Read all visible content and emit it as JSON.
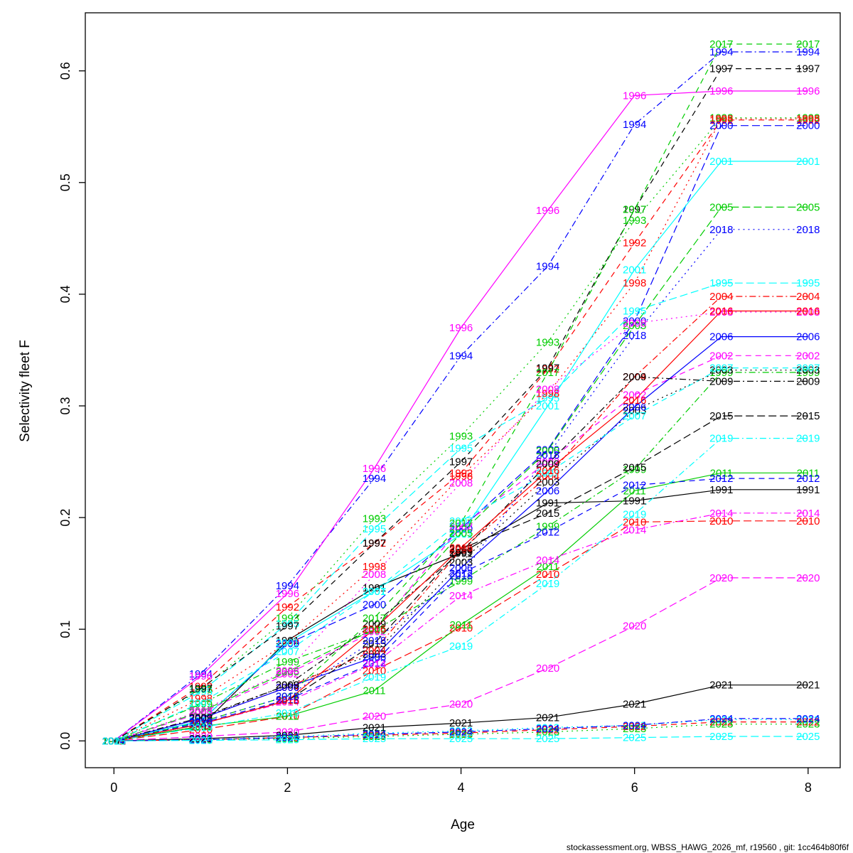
{
  "footer": "stockassessment.org, WBSS_HAWG_2026_mf, r19560 , git: 1cc464b80f6f",
  "chart_data": {
    "type": "line",
    "title": "",
    "xlabel": "Age",
    "ylabel": "Selectivity fleet F",
    "x": [
      0,
      1,
      2,
      3,
      4,
      5,
      6,
      7,
      8
    ],
    "xticks": [
      0,
      2,
      4,
      6,
      8
    ],
    "yticks": [
      "0.0",
      "0.1",
      "0.2",
      "0.3",
      "0.4",
      "0.5",
      "0.6"
    ],
    "xlim": [
      -0.33,
      8.37
    ],
    "ylim": [
      -0.024,
      0.652
    ],
    "grid": false,
    "legend_position": "none",
    "label_style": "year-at-each-point",
    "palette": {
      "black": "#000000",
      "red": "#ff0000",
      "green": "#00cd00",
      "blue": "#0000ff",
      "cyan": "#00ffff",
      "magenta": "#ff00ff"
    },
    "series": [
      {
        "name": "1991",
        "color": "#000000",
        "dash": "solid",
        "values": [
          0,
          0.013,
          0.09,
          0.137,
          0.168,
          0.213,
          0.215,
          0.225,
          0.225
        ]
      },
      {
        "name": "1992",
        "color": "#ff0000",
        "dash": "dashed",
        "values": [
          0,
          0.049,
          0.12,
          0.177,
          0.24,
          0.333,
          0.446,
          0.556,
          0.556
        ]
      },
      {
        "name": "1993",
        "color": "#00cd00",
        "dash": "dotted",
        "values": [
          0,
          0.046,
          0.11,
          0.199,
          0.273,
          0.357,
          0.466,
          0.558,
          0.558
        ]
      },
      {
        "name": "1994",
        "color": "#0000ff",
        "dash": "dashdot",
        "values": [
          0,
          0.06,
          0.139,
          0.235,
          0.345,
          0.425,
          0.552,
          0.617,
          0.617
        ]
      },
      {
        "name": "1995",
        "color": "#00ffff",
        "dash": "longdash",
        "values": [
          0,
          0.044,
          0.105,
          0.19,
          0.262,
          0.307,
          0.385,
          0.41,
          0.41
        ]
      },
      {
        "name": "1996",
        "color": "#ff00ff",
        "dash": "solid",
        "values": [
          0,
          0.058,
          0.132,
          0.244,
          0.37,
          0.475,
          0.578,
          0.582,
          0.582
        ]
      },
      {
        "name": "1997",
        "color": "#000000",
        "dash": "dashed",
        "values": [
          0,
          0.047,
          0.103,
          0.177,
          0.25,
          0.334,
          0.476,
          0.602,
          0.602
        ]
      },
      {
        "name": "1998",
        "color": "#ff0000",
        "dash": "dotted",
        "values": [
          0,
          0.038,
          0.088,
          0.156,
          0.237,
          0.311,
          0.41,
          0.557,
          0.557
        ]
      },
      {
        "name": "1999",
        "color": "#00cd00",
        "dash": "dashdot",
        "values": [
          0,
          0.033,
          0.071,
          0.099,
          0.143,
          0.192,
          0.243,
          0.33,
          0.33
        ]
      },
      {
        "name": "2000",
        "color": "#0000ff",
        "dash": "longdash",
        "values": [
          0,
          0.018,
          0.087,
          0.122,
          0.19,
          0.261,
          0.376,
          0.551,
          0.551
        ]
      },
      {
        "name": "2001",
        "color": "#00ffff",
        "dash": "solid",
        "values": [
          0,
          0.018,
          0.088,
          0.134,
          0.185,
          0.3,
          0.422,
          0.519,
          0.519
        ]
      },
      {
        "name": "2002",
        "color": "#ff00ff",
        "dash": "dashed",
        "values": [
          0,
          0.025,
          0.06,
          0.098,
          0.192,
          0.25,
          0.31,
          0.345,
          0.345
        ]
      },
      {
        "name": "2003",
        "color": "#000000",
        "dash": "dotted",
        "values": [
          0,
          0.02,
          0.05,
          0.078,
          0.16,
          0.232,
          0.296,
          0.332,
          0.332
        ]
      },
      {
        "name": "2004",
        "color": "#ff0000",
        "dash": "dashdot",
        "values": [
          0,
          0.02,
          0.048,
          0.081,
          0.171,
          0.237,
          0.326,
          0.398,
          0.398
        ]
      },
      {
        "name": "2005",
        "color": "#00cd00",
        "dash": "longdash",
        "values": [
          0,
          0.026,
          0.062,
          0.1,
          0.186,
          0.26,
          0.372,
          0.478,
          0.478
        ]
      },
      {
        "name": "2006",
        "color": "#0000ff",
        "dash": "solid",
        "values": [
          0,
          0.02,
          0.048,
          0.075,
          0.155,
          0.224,
          0.299,
          0.362,
          0.362
        ]
      },
      {
        "name": "2007",
        "color": "#00ffff",
        "dash": "dashed",
        "values": [
          0,
          0.034,
          0.08,
          0.134,
          0.197,
          0.24,
          0.291,
          0.334,
          0.334
        ]
      },
      {
        "name": "2008",
        "color": "#ff00ff",
        "dash": "dotted",
        "values": [
          0,
          0.027,
          0.063,
          0.149,
          0.231,
          0.315,
          0.374,
          0.384,
          0.384
        ]
      },
      {
        "name": "2009",
        "color": "#000000",
        "dash": "dashdot",
        "values": [
          0,
          0.021,
          0.05,
          0.105,
          0.169,
          0.248,
          0.326,
          0.322,
          0.322
        ]
      },
      {
        "name": "2010",
        "color": "#ff0000",
        "dash": "longdash",
        "values": [
          0,
          0.01,
          0.022,
          0.063,
          0.101,
          0.149,
          0.196,
          0.197,
          0.197
        ]
      },
      {
        "name": "2011",
        "color": "#00cd00",
        "dash": "solid",
        "values": [
          0,
          0.013,
          0.022,
          0.045,
          0.104,
          0.156,
          0.224,
          0.24,
          0.24
        ]
      },
      {
        "name": "2012",
        "color": "#0000ff",
        "dash": "dashed",
        "values": [
          0,
          0.016,
          0.037,
          0.07,
          0.15,
          0.187,
          0.229,
          0.235,
          0.235
        ]
      },
      {
        "name": "2013",
        "color": "#00ffff",
        "dash": "dotted",
        "values": [
          0,
          0.002,
          0.004,
          0.007,
          0.009,
          0.012,
          0.014,
          0.019,
          0.019
        ]
      },
      {
        "name": "2014",
        "color": "#ff00ff",
        "dash": "dashdot",
        "values": [
          0,
          0.015,
          0.035,
          0.069,
          0.13,
          0.162,
          0.189,
          0.204,
          0.204
        ]
      },
      {
        "name": "2015",
        "color": "#000000",
        "dash": "longdash",
        "values": [
          0,
          0.015,
          0.036,
          0.087,
          0.172,
          0.204,
          0.245,
          0.291,
          0.291
        ]
      },
      {
        "name": "2016",
        "color": "#ff0000",
        "dash": "solid",
        "values": [
          0,
          0.015,
          0.036,
          0.1,
          0.173,
          0.242,
          0.305,
          0.385,
          0.385
        ]
      },
      {
        "name": "2017",
        "color": "#00cd00",
        "dash": "dashed",
        "values": [
          0,
          0.017,
          0.04,
          0.11,
          0.195,
          0.33,
          0.476,
          0.624,
          0.624
        ]
      },
      {
        "name": "2018",
        "color": "#0000ff",
        "dash": "dotted",
        "values": [
          0,
          0.017,
          0.04,
          0.09,
          0.148,
          0.256,
          0.363,
          0.458,
          0.458
        ]
      },
      {
        "name": "2019",
        "color": "#00ffff",
        "dash": "dashdot",
        "values": [
          0,
          0.012,
          0.025,
          0.057,
          0.085,
          0.141,
          0.203,
          0.271,
          0.271
        ]
      },
      {
        "name": "2020",
        "color": "#ff00ff",
        "dash": "longdash",
        "values": [
          0,
          0.004,
          0.008,
          0.022,
          0.033,
          0.065,
          0.103,
          0.146,
          0.146
        ]
      },
      {
        "name": "2021",
        "color": "#000000",
        "dash": "solid",
        "values": [
          0,
          0.002,
          0.005,
          0.012,
          0.016,
          0.021,
          0.033,
          0.05,
          0.05
        ]
      },
      {
        "name": "2022",
        "color": "#ff0000",
        "dash": "dashed",
        "values": [
          0,
          0.001,
          0.003,
          0.005,
          0.007,
          0.01,
          0.013,
          0.017,
          0.017
        ]
      },
      {
        "name": "2023",
        "color": "#00cd00",
        "dash": "dotted",
        "values": [
          0,
          0.001,
          0.002,
          0.004,
          0.006,
          0.008,
          0.011,
          0.015,
          0.015
        ]
      },
      {
        "name": "2024",
        "color": "#0000ff",
        "dash": "dashdot",
        "values": [
          0,
          0.001,
          0.003,
          0.006,
          0.008,
          0.011,
          0.014,
          0.02,
          0.02
        ]
      },
      {
        "name": "2025",
        "color": "#00ffff",
        "dash": "longdash",
        "values": [
          0,
          0.0005,
          0.001,
          0.002,
          0.002,
          0.002,
          0.003,
          0.004,
          0.004
        ]
      }
    ]
  }
}
